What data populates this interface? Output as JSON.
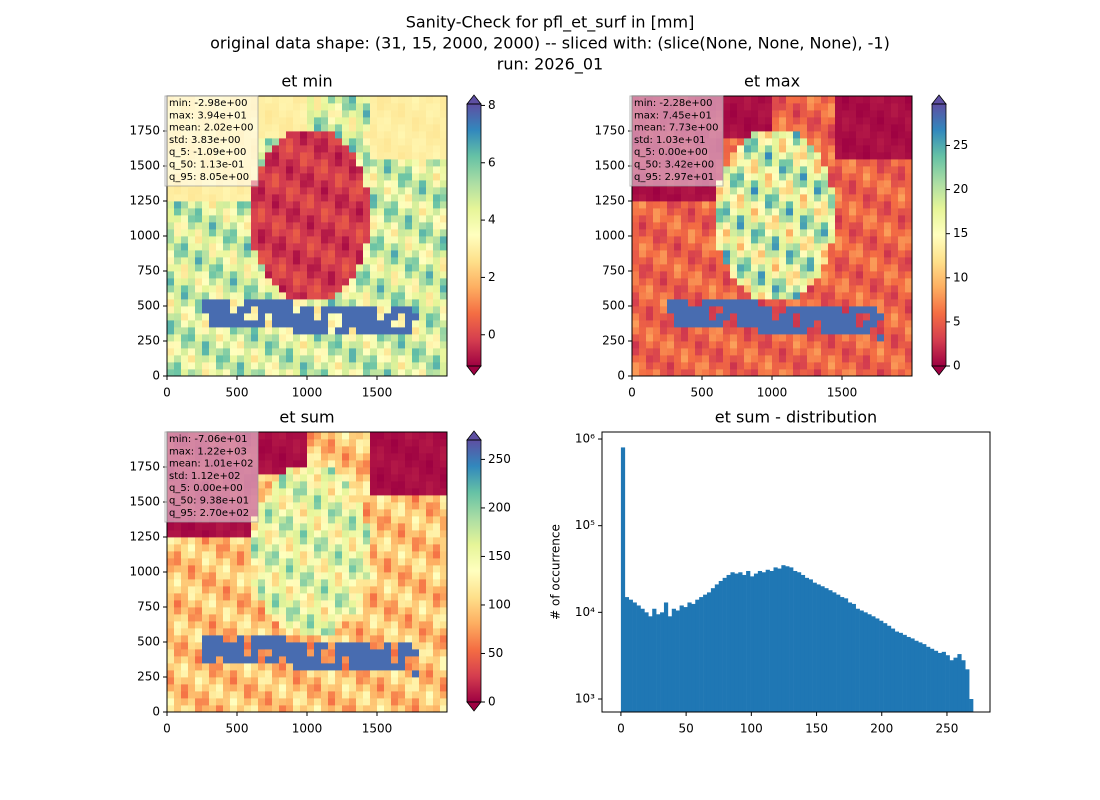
{
  "suptitle": [
    "Sanity-Check for pfl_et_surf in [mm]",
    "original data shape: (31, 15, 2000, 2000) -- sliced with: (slice(None, None, None), -1)",
    "run: 2026_01"
  ],
  "chart_data": [
    {
      "type": "heatmap",
      "title": "et min",
      "colormap": "Spectral",
      "stats": [
        "min: -2.98e+00",
        "max: 3.94e+01",
        "mean: 2.02e+00",
        "std: 3.83e+00",
        "q_5: -1.09e+00",
        "q_50: 1.13e-01",
        "q_95: 8.05e+00"
      ],
      "xlim": [
        0,
        2000
      ],
      "xticks": [
        0,
        500,
        1000,
        1500
      ],
      "ylim": [
        0,
        2000
      ],
      "yticks": [
        0,
        250,
        500,
        750,
        1000,
        1250,
        1500,
        1750
      ],
      "clim": [
        -1.09,
        8.05
      ],
      "cticks": [
        0,
        2,
        4,
        6,
        8
      ]
    },
    {
      "type": "heatmap",
      "title": "et max",
      "colormap": "Spectral",
      "stats": [
        "min: -2.28e+00",
        "max: 7.45e+01",
        "mean: 7.73e+00",
        "std: 1.03e+01",
        "q_5: 0.00e+00",
        "q_50: 3.42e+00",
        "q_95: 2.97e+01"
      ],
      "xlim": [
        0,
        2000
      ],
      "xticks": [
        0,
        500,
        1000,
        1500
      ],
      "ylim": [
        0,
        2000
      ],
      "yticks": [
        0,
        250,
        500,
        750,
        1000,
        1250,
        1500,
        1750
      ],
      "clim": [
        0,
        29.7
      ],
      "cticks": [
        0,
        5,
        10,
        15,
        20,
        25
      ]
    },
    {
      "type": "heatmap",
      "title": "et sum",
      "colormap": "Spectral",
      "stats": [
        "min: -7.06e+01",
        "max: 1.22e+03",
        "mean: 1.01e+02",
        "std: 1.12e+02",
        "q_5: 0.00e+00",
        "q_50: 9.38e+01",
        "q_95: 2.70e+02"
      ],
      "xlim": [
        0,
        2000
      ],
      "xticks": [
        0,
        500,
        1000,
        1500
      ],
      "ylim": [
        0,
        2000
      ],
      "yticks": [
        0,
        250,
        500,
        750,
        1000,
        1250,
        1500,
        1750
      ],
      "clim": [
        0,
        270
      ],
      "cticks": [
        0,
        50,
        100,
        150,
        200,
        250
      ]
    },
    {
      "type": "histogram",
      "title": "et sum - distribution",
      "ylabel": "# of occurrence",
      "color": "#1f77b4",
      "log_y": true,
      "xlim": [
        -14.5,
        283
      ],
      "xticks": [
        0,
        50,
        100,
        150,
        200,
        250
      ],
      "ylim": [
        708,
        1205000
      ],
      "yticks": [
        {
          "value": 1000,
          "label": "10³"
        },
        {
          "value": 10000,
          "label": "10⁴"
        },
        {
          "value": 100000,
          "label": "10⁵"
        },
        {
          "value": 1000000,
          "label": "10⁶"
        }
      ],
      "bins": [
        0,
        3,
        6,
        9,
        12,
        15,
        18,
        21,
        24,
        27,
        30,
        33,
        36,
        39,
        42,
        45,
        48,
        51,
        54,
        57,
        60,
        63,
        66,
        69,
        72,
        75,
        78,
        81,
        84,
        87,
        90,
        93,
        96,
        99,
        102,
        105,
        108,
        111,
        114,
        117,
        120,
        123,
        126,
        129,
        132,
        135,
        138,
        141,
        144,
        147,
        150,
        153,
        156,
        159,
        162,
        165,
        168,
        171,
        174,
        177,
        180,
        183,
        186,
        189,
        192,
        195,
        198,
        201,
        204,
        207,
        210,
        213,
        216,
        219,
        222,
        225,
        228,
        231,
        234,
        237,
        240,
        243,
        246,
        249,
        252,
        255,
        258,
        261,
        264,
        267,
        270
      ],
      "values": [
        800000,
        15000,
        14000,
        13000,
        12000,
        11000,
        10000,
        9000,
        11000,
        9500,
        10000,
        13000,
        9000,
        11000,
        10500,
        12000,
        11500,
        13000,
        12500,
        14000,
        15000,
        16000,
        17000,
        19000,
        21000,
        23000,
        25000,
        27000,
        29000,
        28000,
        29000,
        27000,
        30000,
        26000,
        28000,
        30000,
        29000,
        31000,
        30000,
        33000,
        32000,
        35000,
        34000,
        33000,
        30000,
        29000,
        27000,
        25000,
        24000,
        22000,
        21000,
        20000,
        19000,
        18000,
        17000,
        16000,
        15000,
        14500,
        13000,
        12500,
        11000,
        10500,
        10000,
        9500,
        9000,
        8500,
        8000,
        7500,
        7000,
        6500,
        6000,
        5800,
        5500,
        5200,
        5000,
        4700,
        4500,
        4300,
        4000,
        3800,
        3600,
        3400,
        3500,
        3200,
        2800,
        3000,
        3300,
        2800,
        2200,
        1000
      ]
    }
  ]
}
